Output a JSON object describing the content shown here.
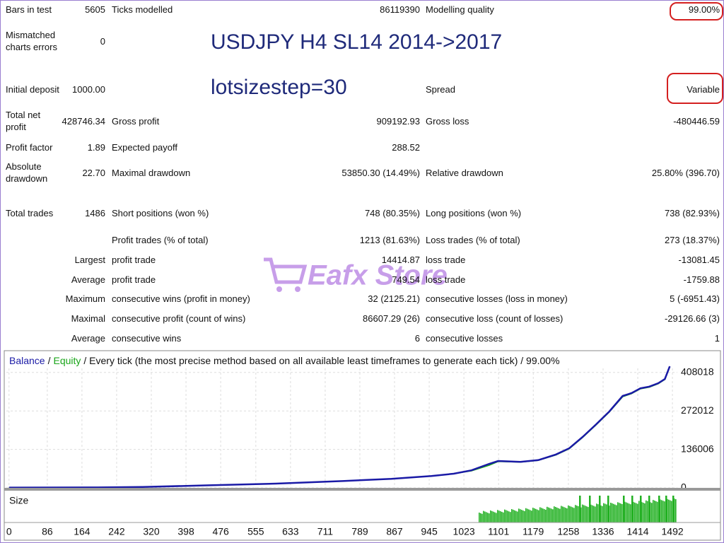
{
  "report": {
    "rows": [
      {
        "c1": "Bars in test",
        "v1": "5605",
        "c2": "Ticks modelled",
        "v2": "86119390",
        "c3": "Modelling quality",
        "v3": "99.00%"
      },
      {
        "c1": "Mismatched charts errors",
        "v1": "0"
      },
      {
        "c1": "Initial deposit",
        "v1": "1000.00",
        "c3": "Spread",
        "v3": "Variable"
      },
      {
        "c1": "Total net profit",
        "v1": "428746.34",
        "c2": "Gross profit",
        "v2": "909192.93",
        "c3": "Gross loss",
        "v3": "-480446.59"
      },
      {
        "c1": "Profit factor",
        "v1": "1.89",
        "c2": "Expected payoff",
        "v2": "288.52"
      },
      {
        "c1": "Absolute drawdown",
        "v1": "22.70",
        "c2": "Maximal drawdown",
        "v2": "53850.30 (14.49%)",
        "c3": "Relative drawdown",
        "v3": "25.80% (396.70)"
      },
      {
        "c1": "Total trades",
        "v1": "1486",
        "c2": "Short positions (won %)",
        "v2": "748 (80.35%)",
        "c3": "Long positions (won %)",
        "v3": "738 (82.93%)"
      },
      {
        "c2": "Profit trades (% of total)",
        "v2": "1213 (81.63%)",
        "c3": "Loss trades (% of total)",
        "v3": "273 (18.37%)"
      },
      {
        "c1": "Largest",
        "c2": "profit trade",
        "v2": "14414.87",
        "c3": "loss trade",
        "v3": "-13081.45"
      },
      {
        "c1": "Average",
        "c2": "profit trade",
        "v2": "749.54",
        "c3": "loss trade",
        "v3": "-1759.88"
      },
      {
        "c1": "Maximum",
        "c2": "consecutive wins (profit in money)",
        "v2": "32 (2125.21)",
        "c3": "consecutive losses (loss in money)",
        "v3": "5 (-6951.43)"
      },
      {
        "c1": "Maximal",
        "c2": "consecutive profit (count of wins)",
        "v2": "86607.29 (26)",
        "c3": "consecutive loss (count of losses)",
        "v3": "-29126.66 (3)"
      },
      {
        "c1": "Average",
        "c2": "consecutive wins",
        "v2": "6",
        "c3": "consecutive losses",
        "v3": "1"
      }
    ]
  },
  "overlay": {
    "title": "USDJPY H4 SL14 2014->2017",
    "note": "lotsizestep=30"
  },
  "watermark": "Eafx Store",
  "chart_data": {
    "type": "line",
    "subtitle": "/ Every tick (the most precise method based on all available least timeframes to generate each tick) / 99.00%",
    "legend_separator": "/",
    "size_label": "Size",
    "x": [
      0,
      200,
      300,
      450,
      600,
      750,
      860,
      950,
      1000,
      1040,
      1080,
      1100,
      1150,
      1190,
      1230,
      1260,
      1290,
      1320,
      1350,
      1380,
      1400,
      1420,
      1440,
      1460,
      1475,
      1486
    ],
    "series": [
      {
        "name": "Balance",
        "color": "#1a1aa6",
        "values": [
          1000,
          1500,
          3000,
          9000,
          15000,
          24000,
          32000,
          42000,
          50000,
          62000,
          85000,
          95000,
          92000,
          98000,
          118000,
          140000,
          180000,
          224000,
          270000,
          325000,
          335000,
          352000,
          358000,
          370000,
          385000,
          429746
        ]
      },
      {
        "name": "Equity",
        "color": "#1aa61a",
        "values": [
          1000,
          1500,
          3000,
          9000,
          15000,
          24000,
          32000,
          42000,
          50000,
          60000,
          80000,
          93000,
          91000,
          97000,
          116000,
          138000,
          178000,
          222000,
          268000,
          322000,
          333000,
          350000,
          356000,
          368000,
          383000,
          428000
        ]
      }
    ],
    "xlim": [
      -6,
      1503
    ],
    "ylim": [
      0,
      470000
    ],
    "xticks": [
      0,
      86,
      164,
      242,
      320,
      398,
      476,
      555,
      633,
      711,
      789,
      867,
      945,
      1023,
      1101,
      1179,
      1258,
      1336,
      1414,
      1492
    ],
    "yticks": [
      0,
      136006,
      272012,
      408018
    ],
    "grid": true
  }
}
